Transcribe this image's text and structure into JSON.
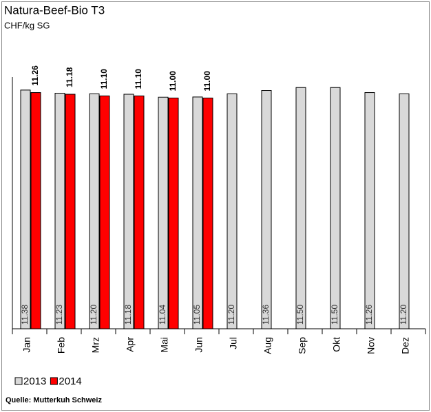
{
  "chart_data": {
    "type": "bar",
    "title": "Natura-Beef-Bio T3",
    "subtitle": "CHF/kg SG",
    "source": "Quelle: Mutterkuh Schweiz",
    "categories": [
      "Jan",
      "Feb",
      "Mrz",
      "Apr",
      "Mai",
      "Jun",
      "Jul",
      "Aug",
      "Sep",
      "Okt",
      "Nov",
      "Dez"
    ],
    "series": [
      {
        "name": "2013",
        "color": "#d9d9d9",
        "values": [
          11.38,
          11.23,
          11.2,
          11.18,
          11.04,
          11.05,
          11.2,
          11.36,
          11.5,
          11.5,
          11.26,
          11.2
        ],
        "value_labels": [
          "11.38",
          "11.23",
          "11.20",
          "11.18",
          "11.04",
          "11.05",
          "11.20",
          "11.36",
          "11.50",
          "11.50",
          "11.26",
          "11.20"
        ]
      },
      {
        "name": "2014",
        "color": "#ff0000",
        "values": [
          11.26,
          11.18,
          11.1,
          11.1,
          11,
          11,
          null,
          null,
          null,
          null,
          null,
          null
        ],
        "value_labels": [
          "11.26",
          "11.18",
          "11.10",
          "11.10",
          "11.00",
          "11.00",
          null,
          null,
          null,
          null,
          null,
          null
        ]
      }
    ],
    "ylim": [
      0,
      12
    ],
    "legend": "bottom-left"
  }
}
